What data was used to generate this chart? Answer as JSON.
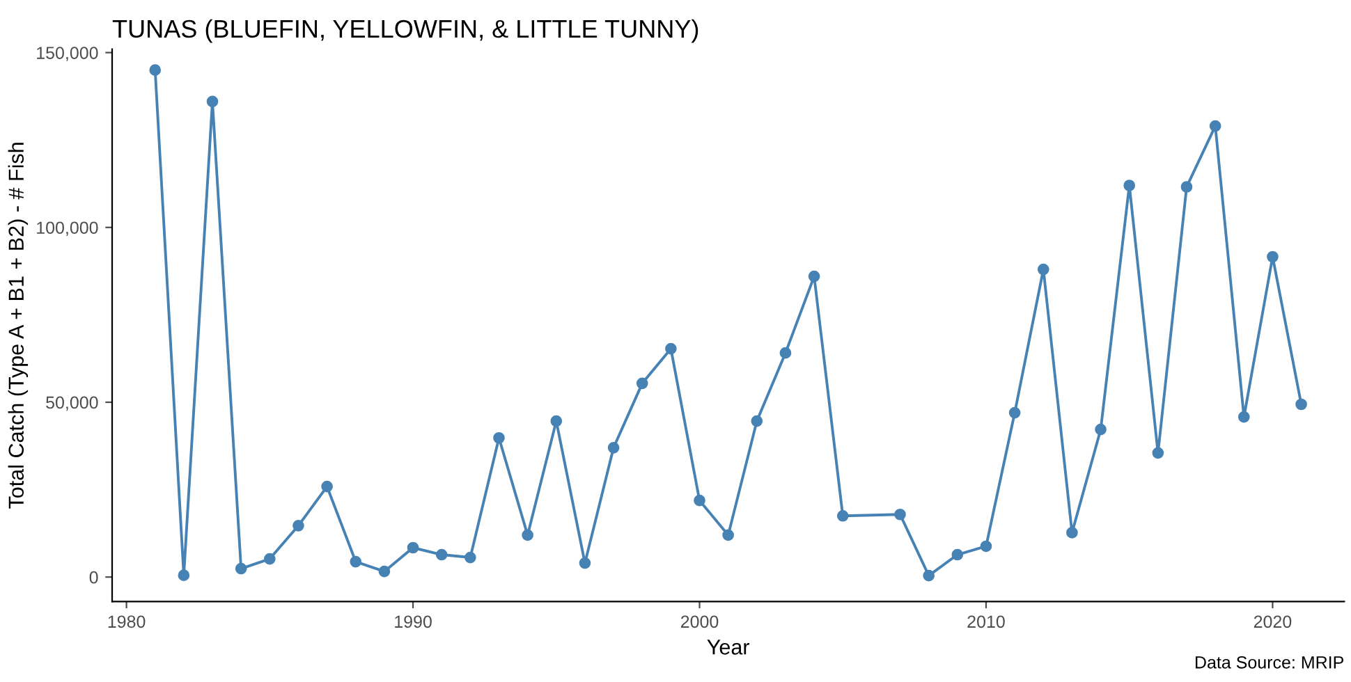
{
  "chart_data": {
    "type": "line",
    "title": "TUNAS (BLUEFIN, YELLOWFIN, & LITTLE TUNNY)",
    "xlabel": "Year",
    "ylabel": "Total Catch (Type A + B1 + B2) - # Fish",
    "x": [
      1981,
      1982,
      1983,
      1984,
      1985,
      1986,
      1987,
      1988,
      1989,
      1990,
      1991,
      1992,
      1993,
      1994,
      1995,
      1996,
      1997,
      1998,
      1999,
      2000,
      2001,
      2002,
      2003,
      2004,
      2005,
      2007,
      2008,
      2009,
      2010,
      2011,
      2012,
      2013,
      2014,
      2015,
      2016,
      2017,
      2018,
      2019,
      2020,
      2021
    ],
    "series": [
      {
        "color": "#4682b4",
        "values": [
          145000,
          500,
          136000,
          2400,
          5200,
          14700,
          25900,
          4400,
          1600,
          8400,
          6400,
          5600,
          39800,
          12000,
          44600,
          4000,
          37000,
          55400,
          65300,
          21900,
          12000,
          44600,
          64100,
          86000,
          17500,
          17900,
          400,
          6400,
          8800,
          47000,
          88000,
          12700,
          42200,
          112000,
          35500,
          111600,
          129000,
          45800,
          91600,
          49400
        ]
      }
    ],
    "xlim": [
      1979.5,
      2022.5
    ],
    "ylim": [
      -7000,
      151000
    ],
    "xticks": [
      1980,
      1990,
      2000,
      2010,
      2020
    ],
    "yticks": [
      {
        "value": 0,
        "label": "0"
      },
      {
        "value": 50000,
        "label": "50,000"
      },
      {
        "value": 100000,
        "label": "100,000"
      },
      {
        "value": 150000,
        "label": "150,000"
      }
    ],
    "marker": "circle",
    "line_style": "solid",
    "grid": false,
    "legend": false,
    "annotations": [
      "Data Source: MRIP"
    ]
  }
}
